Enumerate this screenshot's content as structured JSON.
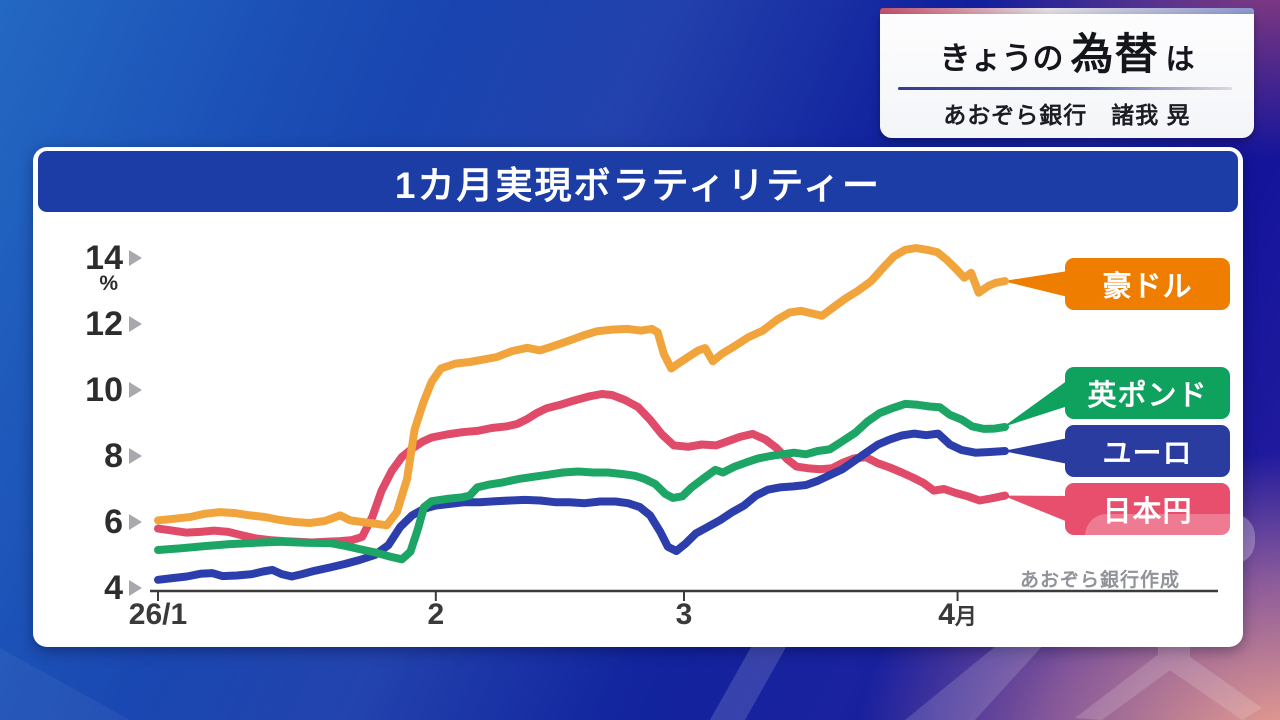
{
  "banner": {
    "title_prefix": "きょうの",
    "title_emphasis": "為替",
    "title_suffix": "は",
    "subtitle": "あおぞら銀行　諸我 晃"
  },
  "card": {
    "title": "1カ月実現ボラティリティー",
    "unit": "%",
    "source_note": "あおぞら銀行作成"
  },
  "colors": {
    "title_bar_blue": "#1C3DA5",
    "card_bg": "#FFFFFF",
    "axis": "#3C3C3C",
    "tick_arrow": "#A7A9AE",
    "axis_label_text": "#2D2D2D",
    "source_text": "#90939A"
  },
  "chart_data": {
    "type": "line",
    "title": "1カ月実現ボラティリティー",
    "ylabel": "%",
    "ylim": [
      4,
      14.6
    ],
    "yticks": [
      14,
      12,
      10,
      8,
      6,
      4
    ],
    "xticks": [
      {
        "label": "26/1",
        "pos": 0
      },
      {
        "label": "2",
        "pos": 32.8
      },
      {
        "label": "3",
        "pos": 62.1
      },
      {
        "label": "4月",
        "pos": 94.4
      }
    ],
    "grid": false,
    "legend_position": "right",
    "series": [
      {
        "id": "aud",
        "name": "豪ドル",
        "line_color": "#F2A43C",
        "label_bg": "#EE7D00",
        "points": [
          [
            0,
            6.05
          ],
          [
            2,
            6.1
          ],
          [
            3.8,
            6.15
          ],
          [
            5.5,
            6.25
          ],
          [
            7.3,
            6.3
          ],
          [
            9.1,
            6.27
          ],
          [
            10.9,
            6.2
          ],
          [
            12.6,
            6.15
          ],
          [
            14.4,
            6.06
          ],
          [
            16.2,
            6.0
          ],
          [
            17.9,
            5.97
          ],
          [
            19.7,
            6.03
          ],
          [
            21.5,
            6.2
          ],
          [
            22.7,
            6.05
          ],
          [
            24.1,
            6.0
          ],
          [
            25.6,
            5.95
          ],
          [
            27,
            5.9
          ],
          [
            28.2,
            6.3
          ],
          [
            29.4,
            7.3
          ],
          [
            30.3,
            8.8
          ],
          [
            31.3,
            9.6
          ],
          [
            32.3,
            10.25
          ],
          [
            33.4,
            10.65
          ],
          [
            35.1,
            10.8
          ],
          [
            36.8,
            10.85
          ],
          [
            38.4,
            10.92
          ],
          [
            40,
            11.0
          ],
          [
            41.8,
            11.18
          ],
          [
            43.6,
            11.28
          ],
          [
            45.1,
            11.2
          ],
          [
            46.9,
            11.35
          ],
          [
            48.6,
            11.5
          ],
          [
            50.2,
            11.65
          ],
          [
            51.8,
            11.78
          ],
          [
            53.6,
            11.83
          ],
          [
            55.4,
            11.85
          ],
          [
            57,
            11.8
          ],
          [
            58.3,
            11.85
          ],
          [
            59,
            11.75
          ],
          [
            59.7,
            11.1
          ],
          [
            60.6,
            10.65
          ],
          [
            61.4,
            10.8
          ],
          [
            62.6,
            11.0
          ],
          [
            63.8,
            11.2
          ],
          [
            64.6,
            11.27
          ],
          [
            65.5,
            10.87
          ],
          [
            66.6,
            11.1
          ],
          [
            67.9,
            11.3
          ],
          [
            69.7,
            11.6
          ],
          [
            71.4,
            11.8
          ],
          [
            73.2,
            12.15
          ],
          [
            74.6,
            12.35
          ],
          [
            75.9,
            12.4
          ],
          [
            77.2,
            12.32
          ],
          [
            78.4,
            12.25
          ],
          [
            79.7,
            12.5
          ],
          [
            81.2,
            12.78
          ],
          [
            82.6,
            13.0
          ],
          [
            84.2,
            13.3
          ],
          [
            85.6,
            13.7
          ],
          [
            86.9,
            14.05
          ],
          [
            88.2,
            14.25
          ],
          [
            89.5,
            14.3
          ],
          [
            90.8,
            14.25
          ],
          [
            92,
            14.18
          ],
          [
            93.1,
            13.95
          ],
          [
            94.3,
            13.65
          ],
          [
            95.2,
            13.4
          ],
          [
            96,
            13.55
          ],
          [
            96.9,
            12.95
          ],
          [
            98,
            13.15
          ],
          [
            98.9,
            13.25
          ],
          [
            100,
            13.3
          ]
        ]
      },
      {
        "id": "gbp",
        "name": "英ポンド",
        "line_color": "#1DA566",
        "label_bg": "#0FA15E",
        "points": [
          [
            0,
            5.15
          ],
          [
            2.6,
            5.2
          ],
          [
            5.5,
            5.27
          ],
          [
            8.5,
            5.33
          ],
          [
            11.5,
            5.37
          ],
          [
            14.4,
            5.4
          ],
          [
            17.4,
            5.37
          ],
          [
            20.3,
            5.36
          ],
          [
            22.1,
            5.28
          ],
          [
            23.8,
            5.18
          ],
          [
            25.6,
            5.08
          ],
          [
            27.4,
            4.95
          ],
          [
            28.8,
            4.87
          ],
          [
            29.8,
            5.1
          ],
          [
            30.7,
            5.8
          ],
          [
            31.4,
            6.45
          ],
          [
            32.3,
            6.63
          ],
          [
            34.1,
            6.7
          ],
          [
            35.9,
            6.75
          ],
          [
            36.8,
            6.8
          ],
          [
            37.7,
            7.05
          ],
          [
            39,
            7.13
          ],
          [
            40.7,
            7.2
          ],
          [
            42.5,
            7.3
          ],
          [
            44.3,
            7.37
          ],
          [
            46,
            7.43
          ],
          [
            47.8,
            7.5
          ],
          [
            49.6,
            7.53
          ],
          [
            51.4,
            7.5
          ],
          [
            53.1,
            7.5
          ],
          [
            54.9,
            7.45
          ],
          [
            56.3,
            7.4
          ],
          [
            57.5,
            7.3
          ],
          [
            58.7,
            7.15
          ],
          [
            59.9,
            6.85
          ],
          [
            60.8,
            6.73
          ],
          [
            61.9,
            6.78
          ],
          [
            63,
            7.05
          ],
          [
            64.3,
            7.3
          ],
          [
            65.8,
            7.58
          ],
          [
            66.7,
            7.5
          ],
          [
            68,
            7.67
          ],
          [
            69.4,
            7.8
          ],
          [
            70.8,
            7.92
          ],
          [
            72.3,
            8.0
          ],
          [
            73.7,
            8.05
          ],
          [
            75.1,
            8.1
          ],
          [
            76.5,
            8.05
          ],
          [
            77.9,
            8.15
          ],
          [
            79.3,
            8.2
          ],
          [
            80.8,
            8.45
          ],
          [
            82.3,
            8.7
          ],
          [
            83.8,
            9.05
          ],
          [
            85.2,
            9.3
          ],
          [
            86.7,
            9.45
          ],
          [
            88.2,
            9.58
          ],
          [
            89.7,
            9.55
          ],
          [
            91.1,
            9.5
          ],
          [
            92.3,
            9.48
          ],
          [
            93.5,
            9.25
          ],
          [
            94.9,
            9.1
          ],
          [
            96.1,
            8.9
          ],
          [
            97.5,
            8.82
          ],
          [
            98.8,
            8.83
          ],
          [
            100,
            8.88
          ]
        ]
      },
      {
        "id": "eur",
        "name": "ユーロ",
        "line_color": "#2C3EAB",
        "label_bg": "#2B3CA0",
        "points": [
          [
            0,
            4.25
          ],
          [
            1.7,
            4.3
          ],
          [
            3.4,
            4.35
          ],
          [
            5,
            4.43
          ],
          [
            6.4,
            4.45
          ],
          [
            7.6,
            4.36
          ],
          [
            9.3,
            4.38
          ],
          [
            11.1,
            4.42
          ],
          [
            12.4,
            4.5
          ],
          [
            13.5,
            4.55
          ],
          [
            14.6,
            4.42
          ],
          [
            15.8,
            4.35
          ],
          [
            17,
            4.42
          ],
          [
            18.5,
            4.52
          ],
          [
            20.3,
            4.62
          ],
          [
            22.1,
            4.73
          ],
          [
            23.8,
            4.85
          ],
          [
            25.6,
            5.0
          ],
          [
            27.2,
            5.3
          ],
          [
            28.6,
            5.85
          ],
          [
            30,
            6.2
          ],
          [
            31.4,
            6.4
          ],
          [
            32.8,
            6.5
          ],
          [
            34.5,
            6.55
          ],
          [
            36.2,
            6.6
          ],
          [
            38,
            6.6
          ],
          [
            39.8,
            6.63
          ],
          [
            41.6,
            6.65
          ],
          [
            43.3,
            6.67
          ],
          [
            45.1,
            6.65
          ],
          [
            46.9,
            6.6
          ],
          [
            48.6,
            6.6
          ],
          [
            50.4,
            6.57
          ],
          [
            52.2,
            6.62
          ],
          [
            54,
            6.62
          ],
          [
            55.5,
            6.57
          ],
          [
            56.9,
            6.45
          ],
          [
            58.1,
            6.2
          ],
          [
            59.3,
            5.7
          ],
          [
            60.2,
            5.25
          ],
          [
            61.2,
            5.12
          ],
          [
            62.3,
            5.35
          ],
          [
            63.5,
            5.65
          ],
          [
            64.9,
            5.85
          ],
          [
            66.4,
            6.06
          ],
          [
            67.8,
            6.3
          ],
          [
            69.2,
            6.5
          ],
          [
            70.6,
            6.8
          ],
          [
            72,
            6.98
          ],
          [
            73.4,
            7.05
          ],
          [
            75,
            7.08
          ],
          [
            76.5,
            7.12
          ],
          [
            77.9,
            7.25
          ],
          [
            79.3,
            7.42
          ],
          [
            80.8,
            7.6
          ],
          [
            82.2,
            7.85
          ],
          [
            83.6,
            8.1
          ],
          [
            85,
            8.35
          ],
          [
            86.4,
            8.5
          ],
          [
            87.8,
            8.62
          ],
          [
            89.3,
            8.68
          ],
          [
            90.7,
            8.63
          ],
          [
            92.1,
            8.68
          ],
          [
            93.5,
            8.35
          ],
          [
            94.9,
            8.18
          ],
          [
            96.5,
            8.1
          ],
          [
            98.2,
            8.12
          ],
          [
            100,
            8.15
          ]
        ]
      },
      {
        "id": "jpy",
        "name": "日本円",
        "line_color": "#DF4B69",
        "label_bg": "#E84F6C",
        "points": [
          [
            0,
            5.8
          ],
          [
            1.7,
            5.74
          ],
          [
            3.3,
            5.68
          ],
          [
            5,
            5.7
          ],
          [
            6.6,
            5.74
          ],
          [
            8.3,
            5.7
          ],
          [
            9.9,
            5.6
          ],
          [
            11.6,
            5.5
          ],
          [
            13.2,
            5.45
          ],
          [
            14.9,
            5.42
          ],
          [
            16.5,
            5.4
          ],
          [
            18.2,
            5.38
          ],
          [
            19.8,
            5.4
          ],
          [
            21.5,
            5.42
          ],
          [
            22.9,
            5.45
          ],
          [
            24.1,
            5.55
          ],
          [
            25.3,
            6.15
          ],
          [
            26.4,
            6.95
          ],
          [
            27.6,
            7.55
          ],
          [
            28.8,
            7.97
          ],
          [
            30,
            8.22
          ],
          [
            31.2,
            8.43
          ],
          [
            32.3,
            8.56
          ],
          [
            34.1,
            8.65
          ],
          [
            35.9,
            8.72
          ],
          [
            37.7,
            8.76
          ],
          [
            39.4,
            8.85
          ],
          [
            41.2,
            8.9
          ],
          [
            42.4,
            8.97
          ],
          [
            43.6,
            9.12
          ],
          [
            44.7,
            9.3
          ],
          [
            45.9,
            9.45
          ],
          [
            47.5,
            9.55
          ],
          [
            49.1,
            9.68
          ],
          [
            50.8,
            9.8
          ],
          [
            52.4,
            9.88
          ],
          [
            53.6,
            9.85
          ],
          [
            55.1,
            9.7
          ],
          [
            56.7,
            9.48
          ],
          [
            58.1,
            9.1
          ],
          [
            59.5,
            8.65
          ],
          [
            60.9,
            8.32
          ],
          [
            62.6,
            8.28
          ],
          [
            64.2,
            8.35
          ],
          [
            65.9,
            8.32
          ],
          [
            67.3,
            8.45
          ],
          [
            68.7,
            8.58
          ],
          [
            70.2,
            8.67
          ],
          [
            71.7,
            8.5
          ],
          [
            73,
            8.25
          ],
          [
            74.3,
            7.9
          ],
          [
            75.4,
            7.68
          ],
          [
            76.7,
            7.63
          ],
          [
            78.2,
            7.6
          ],
          [
            79.6,
            7.63
          ],
          [
            80.9,
            7.8
          ],
          [
            82.2,
            7.93
          ],
          [
            83.6,
            7.96
          ],
          [
            85,
            7.78
          ],
          [
            86.4,
            7.65
          ],
          [
            87.8,
            7.5
          ],
          [
            89.1,
            7.35
          ],
          [
            90.4,
            7.18
          ],
          [
            91.6,
            6.95
          ],
          [
            92.8,
            7.0
          ],
          [
            94.2,
            6.88
          ],
          [
            95.6,
            6.78
          ],
          [
            97,
            6.65
          ],
          [
            98.5,
            6.72
          ],
          [
            100,
            6.8
          ]
        ]
      }
    ]
  }
}
